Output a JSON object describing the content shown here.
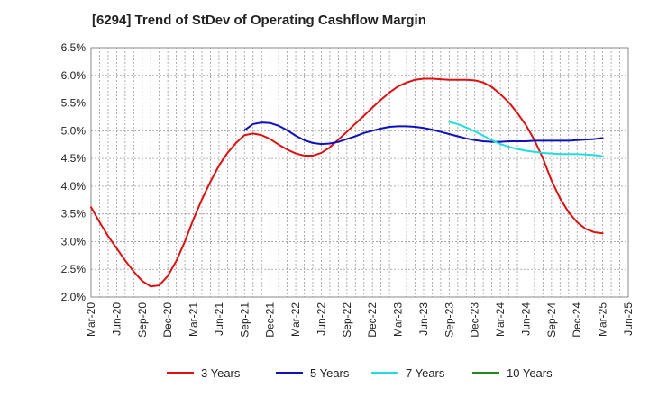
{
  "chart_data": {
    "type": "line",
    "title": "[6294]  Trend of StDev of Operating Cashflow Margin",
    "xlabel": "",
    "ylabel": "",
    "x_ticks": [
      "Mar-20",
      "Jun-20",
      "Sep-20",
      "Dec-20",
      "Mar-21",
      "Jun-21",
      "Sep-21",
      "Dec-21",
      "Mar-22",
      "Jun-22",
      "Sep-22",
      "Dec-22",
      "Mar-23",
      "Jun-23",
      "Sep-23",
      "Dec-23",
      "Mar-24",
      "Jun-24",
      "Sep-24",
      "Dec-24",
      "Mar-25",
      "Jun-25"
    ],
    "y_ticks": [
      "2.0%",
      "2.5%",
      "3.0%",
      "3.5%",
      "4.0%",
      "4.5%",
      "5.0%",
      "5.5%",
      "6.0%",
      "6.5%"
    ],
    "ylim": [
      2.0,
      6.5
    ],
    "grid": true,
    "legend_position": "bottom",
    "series": [
      {
        "name": "3 Years",
        "color": "#dd1111",
        "x": [
          "Mar-20",
          "Apr-20",
          "May-20",
          "Jun-20",
          "Jul-20",
          "Aug-20",
          "Sep-20",
          "Oct-20",
          "Nov-20",
          "Dec-20",
          "Jan-21",
          "Feb-21",
          "Mar-21",
          "Apr-21",
          "May-21",
          "Jun-21",
          "Jul-21",
          "Aug-21",
          "Sep-21",
          "Oct-21",
          "Nov-21",
          "Dec-21",
          "Jan-22",
          "Feb-22",
          "Mar-22",
          "Apr-22",
          "May-22",
          "Jun-22",
          "Jul-22",
          "Aug-22",
          "Sep-22",
          "Oct-22",
          "Nov-22",
          "Dec-22",
          "Jan-23",
          "Feb-23",
          "Mar-23",
          "Apr-23",
          "May-23",
          "Jun-23",
          "Jul-23",
          "Aug-23",
          "Sep-23",
          "Oct-23",
          "Nov-23",
          "Dec-23",
          "Jan-24",
          "Feb-24",
          "Mar-24",
          "Apr-24",
          "May-24",
          "Jun-24",
          "Jul-24",
          "Aug-24",
          "Sep-24",
          "Oct-24",
          "Nov-24",
          "Dec-24",
          "Jan-25",
          "Feb-25",
          "Mar-25"
        ],
        "values": [
          3.62,
          3.35,
          3.1,
          2.88,
          2.66,
          2.46,
          2.29,
          2.19,
          2.21,
          2.38,
          2.65,
          3.0,
          3.4,
          3.76,
          4.08,
          4.37,
          4.6,
          4.78,
          4.92,
          4.95,
          4.92,
          4.85,
          4.75,
          4.66,
          4.59,
          4.55,
          4.55,
          4.6,
          4.7,
          4.84,
          4.98,
          5.13,
          5.27,
          5.42,
          5.56,
          5.69,
          5.8,
          5.87,
          5.92,
          5.94,
          5.94,
          5.93,
          5.92,
          5.92,
          5.92,
          5.91,
          5.87,
          5.79,
          5.66,
          5.51,
          5.32,
          5.1,
          4.83,
          4.5,
          4.1,
          3.78,
          3.53,
          3.35,
          3.23,
          3.17,
          3.15
        ]
      },
      {
        "name": "5 Years",
        "color": "#1111bb",
        "x": [
          "Sep-21",
          "Oct-21",
          "Nov-21",
          "Dec-21",
          "Jan-22",
          "Feb-22",
          "Mar-22",
          "Apr-22",
          "May-22",
          "Jun-22",
          "Jul-22",
          "Aug-22",
          "Sep-22",
          "Oct-22",
          "Nov-22",
          "Dec-22",
          "Jan-23",
          "Feb-23",
          "Mar-23",
          "Apr-23",
          "May-23",
          "Jun-23",
          "Jul-23",
          "Aug-23",
          "Sep-23",
          "Oct-23",
          "Nov-23",
          "Dec-23",
          "Jan-24",
          "Feb-24",
          "Mar-24",
          "Apr-24",
          "May-24",
          "Jun-24",
          "Jul-24",
          "Aug-24",
          "Sep-24",
          "Oct-24",
          "Nov-24",
          "Dec-24",
          "Jan-25",
          "Feb-25",
          "Mar-25"
        ],
        "values": [
          5.01,
          5.12,
          5.15,
          5.14,
          5.09,
          5.01,
          4.91,
          4.83,
          4.78,
          4.76,
          4.77,
          4.8,
          4.85,
          4.9,
          4.96,
          5.0,
          5.04,
          5.07,
          5.08,
          5.08,
          5.07,
          5.05,
          5.02,
          4.98,
          4.94,
          4.9,
          4.86,
          4.83,
          4.81,
          4.8,
          4.8,
          4.81,
          4.81,
          4.81,
          4.82,
          4.82,
          4.82,
          4.82,
          4.82,
          4.83,
          4.84,
          4.85,
          4.87
        ]
      },
      {
        "name": "7 Years",
        "color": "#22dddd",
        "x": [
          "Sep-23",
          "Oct-23",
          "Nov-23",
          "Dec-23",
          "Jan-24",
          "Feb-24",
          "Mar-24",
          "Apr-24",
          "May-24",
          "Jun-24",
          "Jul-24",
          "Aug-24",
          "Sep-24",
          "Oct-24",
          "Nov-24",
          "Dec-24",
          "Jan-25",
          "Feb-25",
          "Mar-25"
        ],
        "values": [
          5.16,
          5.12,
          5.06,
          4.99,
          4.91,
          4.83,
          4.76,
          4.71,
          4.67,
          4.64,
          4.62,
          4.6,
          4.59,
          4.58,
          4.58,
          4.58,
          4.57,
          4.56,
          4.54
        ]
      },
      {
        "name": "10 Years",
        "color": "#228822",
        "x": [],
        "values": []
      }
    ]
  }
}
